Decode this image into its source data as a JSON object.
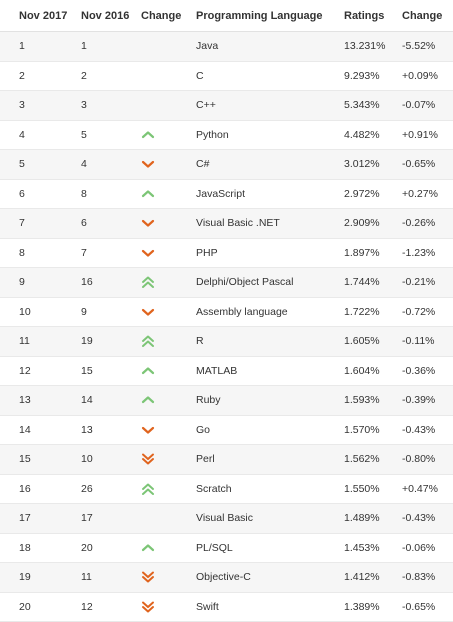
{
  "table": {
    "headers": {
      "nov2017": "Nov 2017",
      "nov2016": "Nov 2016",
      "change": "Change",
      "language": "Programming Language",
      "ratings": "Ratings",
      "rating_change": "Change"
    },
    "colors": {
      "up": "#7cc576",
      "down": "#e0641e",
      "stripe": "#f6f6f6"
    },
    "rows": [
      {
        "rank": "1",
        "prev": "1",
        "trend": "none",
        "language": "Java",
        "rating": "13.231%",
        "delta": "-5.52%"
      },
      {
        "rank": "2",
        "prev": "2",
        "trend": "none",
        "language": "C",
        "rating": "9.293%",
        "delta": "+0.09%"
      },
      {
        "rank": "3",
        "prev": "3",
        "trend": "none",
        "language": "C++",
        "rating": "5.343%",
        "delta": "-0.07%"
      },
      {
        "rank": "4",
        "prev": "5",
        "trend": "up",
        "language": "Python",
        "rating": "4.482%",
        "delta": "+0.91%"
      },
      {
        "rank": "5",
        "prev": "4",
        "trend": "down",
        "language": "C#",
        "rating": "3.012%",
        "delta": "-0.65%"
      },
      {
        "rank": "6",
        "prev": "8",
        "trend": "up",
        "language": "JavaScript",
        "rating": "2.972%",
        "delta": "+0.27%"
      },
      {
        "rank": "7",
        "prev": "6",
        "trend": "down",
        "language": "Visual Basic .NET",
        "rating": "2.909%",
        "delta": "-0.26%"
      },
      {
        "rank": "8",
        "prev": "7",
        "trend": "down",
        "language": "PHP",
        "rating": "1.897%",
        "delta": "-1.23%"
      },
      {
        "rank": "9",
        "prev": "16",
        "trend": "up2",
        "language": "Delphi/Object Pascal",
        "rating": "1.744%",
        "delta": "-0.21%"
      },
      {
        "rank": "10",
        "prev": "9",
        "trend": "down",
        "language": "Assembly language",
        "rating": "1.722%",
        "delta": "-0.72%"
      },
      {
        "rank": "11",
        "prev": "19",
        "trend": "up2",
        "language": "R",
        "rating": "1.605%",
        "delta": "-0.11%"
      },
      {
        "rank": "12",
        "prev": "15",
        "trend": "up",
        "language": "MATLAB",
        "rating": "1.604%",
        "delta": "-0.36%"
      },
      {
        "rank": "13",
        "prev": "14",
        "trend": "up",
        "language": "Ruby",
        "rating": "1.593%",
        "delta": "-0.39%"
      },
      {
        "rank": "14",
        "prev": "13",
        "trend": "down",
        "language": "Go",
        "rating": "1.570%",
        "delta": "-0.43%"
      },
      {
        "rank": "15",
        "prev": "10",
        "trend": "down2",
        "language": "Perl",
        "rating": "1.562%",
        "delta": "-0.80%"
      },
      {
        "rank": "16",
        "prev": "26",
        "trend": "up2",
        "language": "Scratch",
        "rating": "1.550%",
        "delta": "+0.47%"
      },
      {
        "rank": "17",
        "prev": "17",
        "trend": "none",
        "language": "Visual Basic",
        "rating": "1.489%",
        "delta": "-0.43%"
      },
      {
        "rank": "18",
        "prev": "20",
        "trend": "up",
        "language": "PL/SQL",
        "rating": "1.453%",
        "delta": "-0.06%"
      },
      {
        "rank": "19",
        "prev": "11",
        "trend": "down2",
        "language": "Objective-C",
        "rating": "1.412%",
        "delta": "-0.83%"
      },
      {
        "rank": "20",
        "prev": "12",
        "trend": "down2",
        "language": "Swift",
        "rating": "1.389%",
        "delta": "-0.65%"
      }
    ]
  }
}
